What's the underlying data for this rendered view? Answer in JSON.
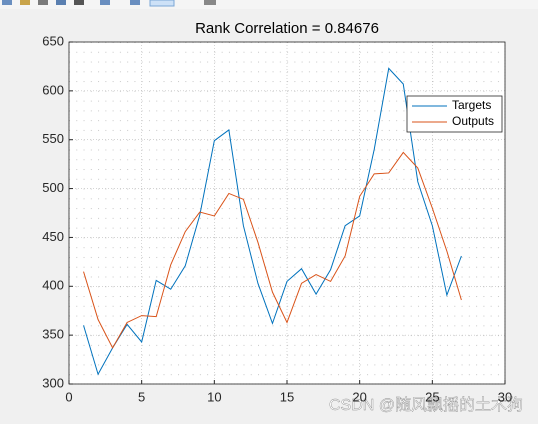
{
  "chart_data": {
    "type": "line",
    "title": "Rank Correlation = 0.84676",
    "x": [
      1,
      2,
      3,
      4,
      5,
      6,
      7,
      8,
      9,
      10,
      11,
      12,
      13,
      14,
      15,
      16,
      17,
      18,
      19,
      20,
      21,
      22,
      23,
      24,
      25,
      26,
      27
    ],
    "series": [
      {
        "name": "Targets",
        "color": "#0072bd",
        "values": [
          360,
          310,
          337,
          361,
          343,
          406,
          397,
          421,
          473,
          549,
          560,
          462,
          403,
          362,
          405,
          418,
          392,
          417,
          462,
          472,
          540,
          623,
          607,
          507,
          462,
          391,
          431
        ]
      },
      {
        "name": "Outputs",
        "color": "#d95319",
        "values": [
          415,
          366,
          337,
          363,
          370,
          369,
          422,
          456,
          476,
          472,
          495,
          489,
          445,
          394,
          363,
          403,
          412,
          405,
          431,
          492,
          515,
          516,
          537,
          521,
          480,
          436,
          386
        ]
      }
    ],
    "xlim": [
      0,
      30
    ],
    "xticks": [
      0,
      5,
      10,
      15,
      20,
      25,
      30
    ],
    "ylim": [
      300,
      650
    ],
    "yticks": [
      300,
      350,
      400,
      450,
      500,
      550,
      600,
      650
    ],
    "grid": true,
    "legend": "northeast",
    "watermark": "CSDN @随风飘摇的土木狗"
  }
}
